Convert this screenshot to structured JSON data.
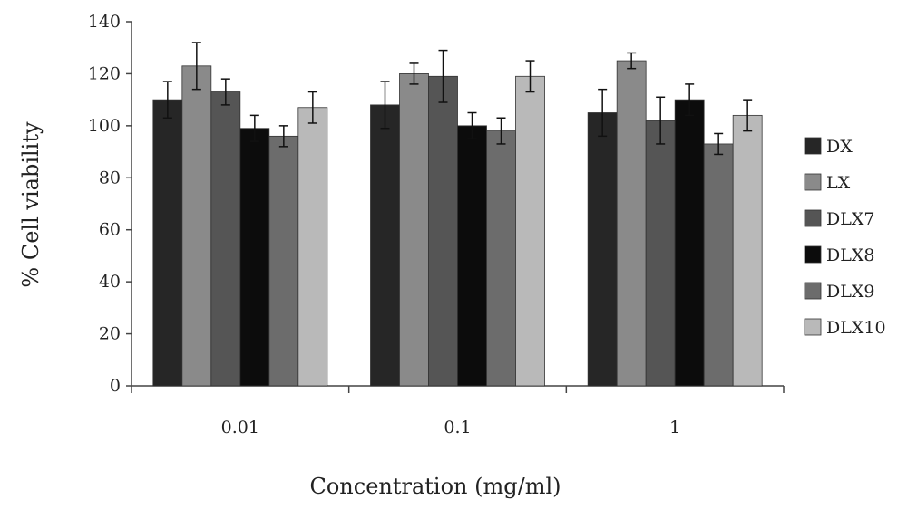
{
  "chart_data": {
    "type": "bar",
    "categories": [
      "0.01",
      "0.1",
      "1"
    ],
    "series": [
      {
        "name": "DX",
        "values": [
          110,
          108,
          105
        ],
        "errors": [
          7,
          9,
          9
        ],
        "color": "#262626"
      },
      {
        "name": "LX",
        "values": [
          123,
          120,
          125
        ],
        "errors": [
          9,
          4,
          3
        ],
        "color": "#8a8a8a"
      },
      {
        "name": "DLX7",
        "values": [
          113,
          119,
          102
        ],
        "errors": [
          5,
          10,
          9
        ],
        "color": "#555555"
      },
      {
        "name": "DLX8",
        "values": [
          99,
          100,
          110
        ],
        "errors": [
          5,
          5,
          6
        ],
        "color": "#0c0c0c"
      },
      {
        "name": "DLX9",
        "values": [
          96,
          98,
          93
        ],
        "errors": [
          4,
          5,
          4
        ],
        "color": "#6c6c6c"
      },
      {
        "name": "DLX10",
        "values": [
          107,
          119,
          104
        ],
        "errors": [
          6,
          6,
          6
        ],
        "color": "#b9b9b9"
      }
    ],
    "yticks": [
      "0",
      "20",
      "40",
      "60",
      "80",
      "100",
      "120",
      "140"
    ],
    "xlabel": "Concentration (mg/ml)",
    "ylabel": "% Cell viability",
    "ylim": [
      0,
      140
    ],
    "legend_position": "right",
    "grid": false
  }
}
